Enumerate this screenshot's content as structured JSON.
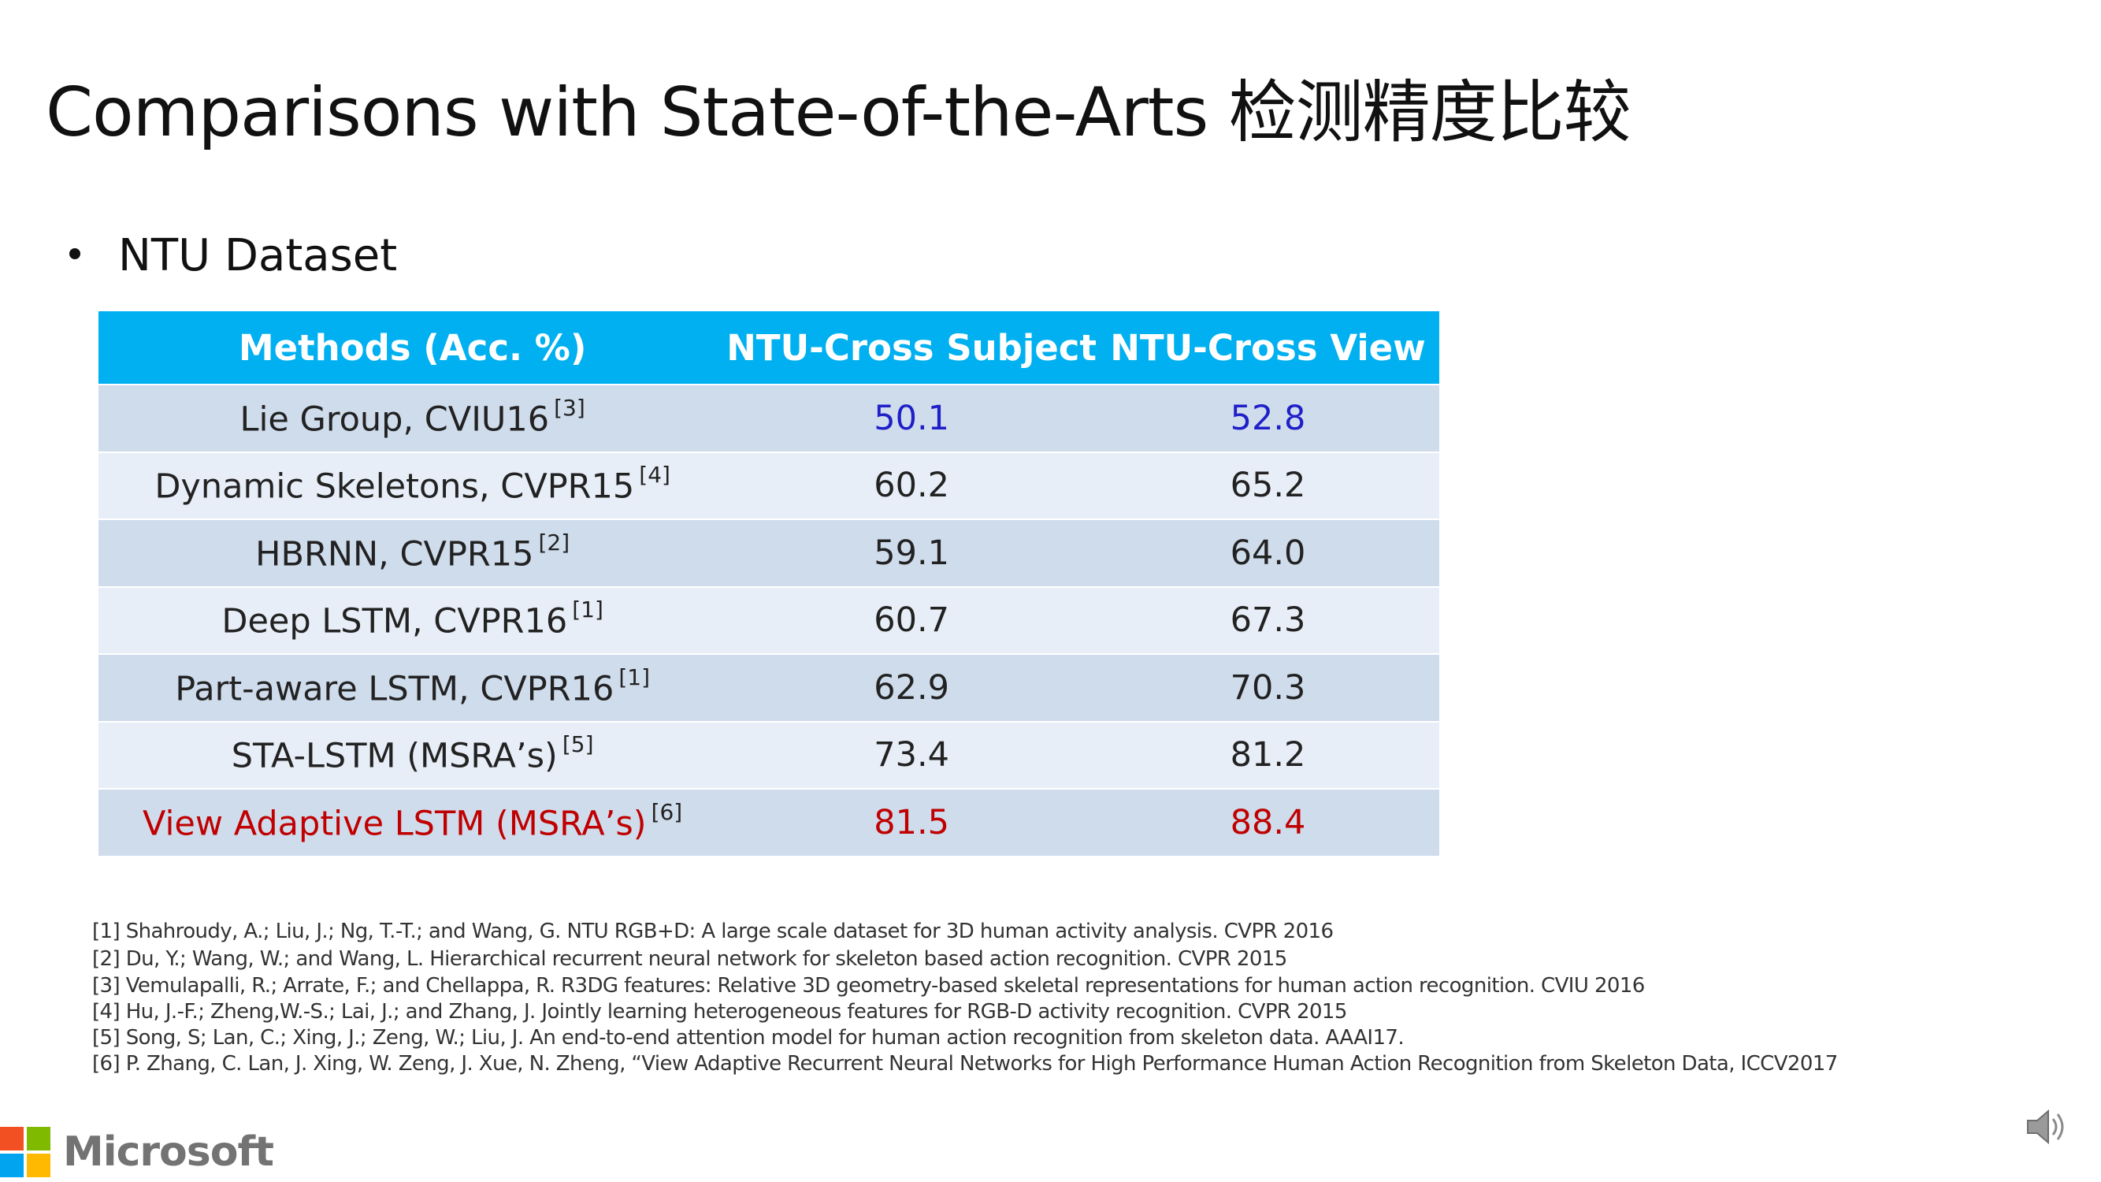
{
  "title": "Comparisons with State-of-the-Arts  检测精度比较",
  "bullet": "NTU Dataset",
  "table": {
    "headers": [
      "Methods (Acc. %)",
      "NTU-Cross Subject",
      "NTU-Cross View"
    ],
    "rows": [
      {
        "method": "Lie Group, CVIU16",
        "ref": "[3]",
        "cs": "50.1",
        "cv": "52.8"
      },
      {
        "method": "Dynamic Skeletons, CVPR15",
        "ref": "[4]",
        "cs": "60.2",
        "cv": "65.2"
      },
      {
        "method": "HBRNN, CVPR15",
        "ref": "[2]",
        "cs": "59.1",
        "cv": "64.0"
      },
      {
        "method": "Deep LSTM, CVPR16",
        "ref": "[1]",
        "cs": "60.7",
        "cv": "67.3"
      },
      {
        "method": "Part-aware LSTM, CVPR16",
        "ref": "[1]",
        "cs": "62.9",
        "cv": "70.3"
      },
      {
        "method": "STA-LSTM (MSRA’s)",
        "ref": "[5]",
        "cs": "73.4",
        "cv": "81.2"
      },
      {
        "method": "View Adaptive LSTM (MSRA’s)",
        "ref": "[6]",
        "cs": "81.5",
        "cv": "88.4"
      }
    ]
  },
  "colors": {
    "header_bg": "#00b0f0",
    "row_odd": "#cfdcec",
    "row_even": "#e8eef7",
    "blue_values": "#1f1fc8",
    "highlight_red": "#c00000",
    "ms_red": "#f25022",
    "ms_green": "#7fba00",
    "ms_blue": "#00a4ef",
    "ms_yellow": "#ffb900"
  },
  "references": [
    "[1] Shahroudy, A.; Liu, J.; Ng, T.-T.; and Wang, G. NTU RGB+D: A large scale dataset for 3D human activity analysis. CVPR 2016",
    "[2] Du, Y.; Wang, W.; and Wang, L. Hierarchical recurrent neural network for skeleton based action recognition. CVPR 2015",
    "[3] Vemulapalli, R.; Arrate, F.; and Chellappa, R. R3DG features: Relative 3D geometry-based skeletal representations for human action recognition. CVIU 2016",
    "[4] Hu, J.-F.; Zheng,W.-S.; Lai, J.; and Zhang, J. Jointly learning heterogeneous features for RGB-D activity recognition. CVPR 2015",
    "[5] Song, S; Lan, C.; Xing, J.; Zeng, W.; Liu, J. An end-to-end attention model for human action recognition from skeleton data. AAAI17.",
    "[6] P. Zhang, C. Lan, J. Xing, W. Zeng, J. Xue, N. Zheng, “View Adaptive Recurrent Neural Networks for High Performance Human Action Recognition from Skeleton Data, ICCV2017"
  ],
  "logo": {
    "text": "Microsoft",
    "icon": "microsoft-logo-icon"
  },
  "speaker_icon": "speaker-icon"
}
